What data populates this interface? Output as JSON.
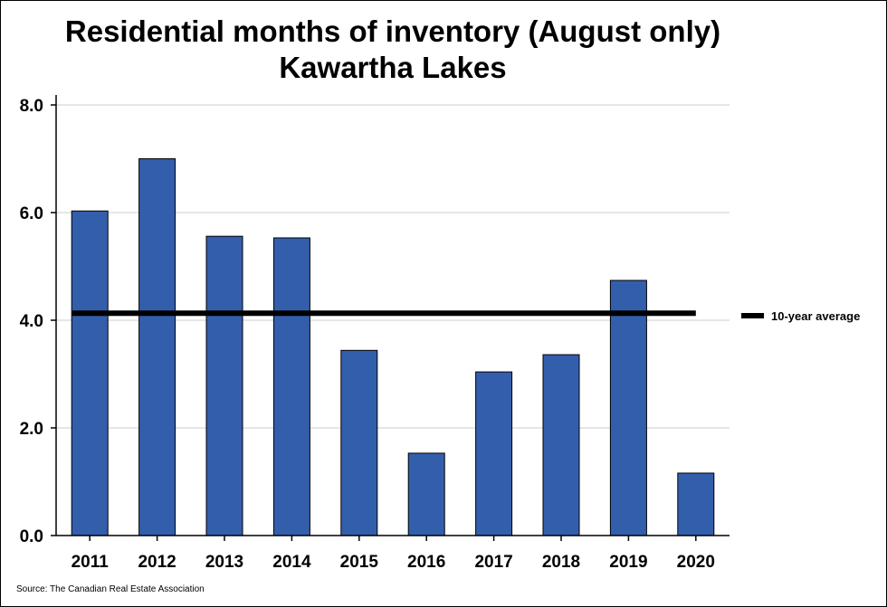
{
  "chart_data": {
    "type": "bar",
    "title": "Residential months of inventory (August only)",
    "subtitle": "Kawartha Lakes",
    "categories": [
      "2011",
      "2012",
      "2013",
      "2014",
      "2015",
      "2016",
      "2017",
      "2018",
      "2019",
      "2020"
    ],
    "series": [
      {
        "values": [
          6.03,
          7.0,
          5.56,
          5.53,
          3.44,
          1.53,
          3.04,
          3.36,
          4.74,
          1.16
        ]
      }
    ],
    "reference_line": {
      "name": "10-year average",
      "value": 4.13
    },
    "ylim": [
      0,
      8
    ],
    "yticks": [
      "0.0",
      "2.0",
      "4.0",
      "6.0",
      "8.0"
    ],
    "grid": true,
    "legend": "right",
    "colors": {
      "bar": "#335eac",
      "bar_outline": "#000000",
      "average_line": "#000000",
      "grid": "#cccccc"
    }
  },
  "source": "Source: The Canadian Real Estate Association"
}
